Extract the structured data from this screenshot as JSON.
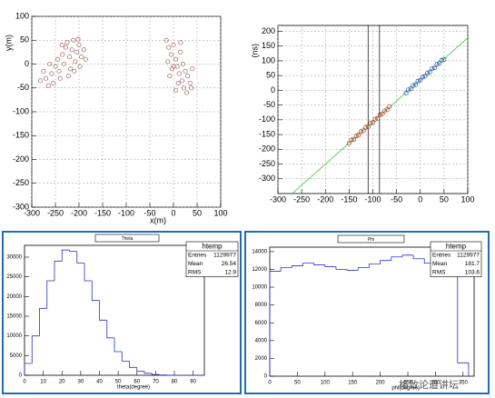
{
  "chart_data": [
    {
      "type": "scatter",
      "x_label": "x(m)",
      "y_label": "y(m)",
      "grid": true,
      "xlim": [
        -300,
        100
      ],
      "xticks": [
        -300,
        -250,
        -200,
        -150,
        -100,
        -50,
        0,
        50,
        100
      ],
      "ylim": [
        -300,
        100
      ],
      "yticks": [
        -300,
        -250,
        -200,
        -150,
        -100,
        -50,
        0,
        50,
        100
      ],
      "series": [
        {
          "color": "#9a5a5a",
          "x": [
            -270,
            -265,
            -258,
            -250,
            -245,
            -240,
            -235,
            -232,
            -228,
            -225,
            -220,
            -218,
            -215,
            -212,
            -208,
            -205,
            -200,
            -198,
            -195,
            -190,
            -186,
            -282,
            -275,
            -262,
            -254,
            -242,
            -236,
            -222,
            -210,
            -202,
            -15,
            -10,
            -5,
            0,
            5,
            -12,
            8,
            15,
            -3,
            12,
            20,
            25,
            18,
            30,
            22,
            10,
            35,
            28,
            40,
            5,
            -8,
            15,
            38,
            0
          ],
          "values": [
            -30,
            -45,
            -20,
            -5,
            10,
            -30,
            20,
            0,
            35,
            45,
            15,
            -10,
            30,
            50,
            5,
            25,
            40,
            -5,
            15,
            30,
            10,
            -35,
            -15,
            0,
            -40,
            -15,
            40,
            -25,
            -15,
            52,
            50,
            35,
            20,
            40,
            10,
            5,
            -5,
            25,
            -10,
            -20,
            0,
            -15,
            -35,
            -25,
            -50,
            -40,
            -40,
            -60,
            -10,
            -55,
            -25,
            45,
            -50,
            -5
          ]
        }
      ]
    },
    {
      "type": "scatter",
      "y_label": "(ns)",
      "grid": true,
      "xlim": [
        -300,
        100
      ],
      "xticks": [
        -300,
        -250,
        -200,
        -150,
        -100,
        -50,
        0,
        50,
        100
      ],
      "ylim": [
        -350,
        220
      ],
      "yticks": [
        -300,
        -250,
        -200,
        -150,
        -100,
        -50,
        0,
        50,
        100,
        150,
        200
      ],
      "vlines": [
        -110,
        -86
      ],
      "line": {
        "color": "#66cc66",
        "x": [
          -270,
          100
        ],
        "values": [
          -350,
          178
        ]
      },
      "series": [
        {
          "color": "#b03020",
          "x": [
            -150,
            -145,
            -140,
            -135,
            -130,
            -125,
            -120,
            -115,
            -110,
            -105,
            -100,
            -95,
            -90,
            -85,
            -80,
            -75,
            -70,
            -65
          ],
          "values": [
            -180,
            -168,
            -166,
            -155,
            -152,
            -140,
            -137,
            -126,
            -123,
            -112,
            -109,
            -98,
            -95,
            -83,
            -80,
            -70,
            -66,
            -55
          ]
        },
        {
          "color": "#2a4ab0",
          "x": [
            -30,
            -25,
            -20,
            -15,
            -10,
            -5,
            0,
            5,
            10,
            15,
            20,
            25,
            30,
            35,
            40,
            45,
            50
          ],
          "values": [
            -9,
            2,
            5,
            16,
            19,
            31,
            34,
            45,
            48,
            59,
            62,
            74,
            77,
            88,
            91,
            102,
            105
          ]
        }
      ]
    },
    {
      "type": "histogram",
      "title": "Theta",
      "x_label": "theta(degree)",
      "color": "#3030c0",
      "xlim": [
        0,
        96
      ],
      "xticks": [
        0,
        10,
        20,
        30,
        40,
        50,
        60,
        70,
        80,
        90
      ],
      "ylim": [
        0,
        33000
      ],
      "yticks": [
        0,
        5000,
        10000,
        15000,
        20000,
        25000,
        30000
      ],
      "bins": [
        0,
        4,
        8,
        12,
        16,
        20,
        24,
        28,
        32,
        36,
        40,
        44,
        48,
        52,
        56,
        60,
        64,
        68,
        72,
        76,
        80,
        84,
        88,
        92,
        96
      ],
      "values": [
        3000,
        10000,
        17000,
        24000,
        29000,
        31800,
        31500,
        28500,
        24000,
        19000,
        14000,
        9500,
        6000,
        3600,
        2000,
        1000,
        500,
        200,
        80,
        30,
        10,
        5,
        0,
        0
      ],
      "stats": {
        "title": "htemp",
        "rows": [
          {
            "label": "Entries",
            "value": 1129977
          },
          {
            "label": "Mean",
            "value": 26.54
          },
          {
            "label": "RMS",
            "value": 12.9
          }
        ]
      }
    },
    {
      "type": "histogram",
      "title": "Phi",
      "x_label": "phi(degree)",
      "color": "#3030c0",
      "xlim": [
        0,
        370
      ],
      "xticks": [
        0,
        50,
        100,
        150,
        200,
        250,
        300,
        350
      ],
      "ylim": [
        0,
        14500
      ],
      "yticks": [
        0,
        2000,
        4000,
        6000,
        8000,
        10000,
        12000,
        14000
      ],
      "bins": [
        0,
        20,
        40,
        60,
        80,
        100,
        120,
        140,
        160,
        180,
        200,
        220,
        240,
        260,
        280,
        300,
        320,
        340,
        360
      ],
      "values": [
        11800,
        12200,
        12400,
        12700,
        12500,
        12300,
        12000,
        11900,
        12200,
        12600,
        13000,
        13400,
        13600,
        13200,
        12700,
        12400,
        12000,
        1500
      ],
      "stats": {
        "title": "htemp",
        "rows": [
          {
            "label": "Entries",
            "value": 1129977
          },
          {
            "label": "Mean",
            "value": 181.7
          },
          {
            "label": "RMS",
            "value": 103.6
          }
        ]
      }
    }
  ],
  "watermark": "格致论道讲坛"
}
